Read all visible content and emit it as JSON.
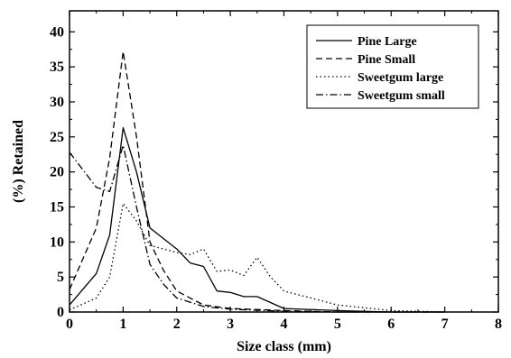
{
  "chart_data": {
    "type": "line",
    "title": "",
    "xlabel": "Size class (mm)",
    "ylabel": "(%) Retained",
    "xlim": [
      0,
      8
    ],
    "ylim": [
      0,
      43
    ],
    "xticks": [
      0,
      1,
      2,
      3,
      4,
      5,
      6,
      7,
      8
    ],
    "yticks": [
      0,
      5,
      10,
      15,
      20,
      25,
      30,
      35,
      40
    ],
    "grid": false,
    "legend_position": "top-right",
    "series": [
      {
        "name": "Pine Large",
        "dash": "solid",
        "color": "#000000",
        "points": [
          [
            0,
            1
          ],
          [
            0.5,
            5.5
          ],
          [
            0.75,
            11
          ],
          [
            1,
            26.3
          ],
          [
            1.25,
            20
          ],
          [
            1.5,
            12
          ],
          [
            2,
            9
          ],
          [
            2.25,
            7
          ],
          [
            2.5,
            6.5
          ],
          [
            2.75,
            3
          ],
          [
            3,
            2.8
          ],
          [
            3.25,
            2.2
          ],
          [
            3.5,
            2.2
          ],
          [
            4,
            0.5
          ],
          [
            5,
            0.2
          ],
          [
            6,
            0
          ],
          [
            7,
            0
          ]
        ]
      },
      {
        "name": "Pine Small",
        "dash": "dashed",
        "color": "#000000",
        "points": [
          [
            0,
            3.2
          ],
          [
            0.5,
            12
          ],
          [
            0.75,
            22
          ],
          [
            1,
            37.2
          ],
          [
            1.25,
            25
          ],
          [
            1.5,
            10
          ],
          [
            1.75,
            6
          ],
          [
            2,
            3
          ],
          [
            2.5,
            1
          ],
          [
            3,
            0.5
          ],
          [
            4,
            0.2
          ],
          [
            5,
            0
          ],
          [
            6,
            0
          ],
          [
            7,
            0
          ]
        ]
      },
      {
        "name": "Sweetgum large",
        "dash": "dotted",
        "color": "#000000",
        "points": [
          [
            0,
            0.3
          ],
          [
            0.5,
            2
          ],
          [
            0.75,
            5
          ],
          [
            1,
            15.5
          ],
          [
            1.25,
            13
          ],
          [
            1.5,
            9.5
          ],
          [
            2,
            8.5
          ],
          [
            2.25,
            8.2
          ],
          [
            2.5,
            9
          ],
          [
            2.75,
            5.8
          ],
          [
            3,
            6
          ],
          [
            3.25,
            5.2
          ],
          [
            3.5,
            7.8
          ],
          [
            3.75,
            5
          ],
          [
            4,
            3
          ],
          [
            5,
            1
          ],
          [
            6,
            0.2
          ],
          [
            7,
            0
          ]
        ]
      },
      {
        "name": "Sweetgum small",
        "dash": "dashdot",
        "color": "#000000",
        "points": [
          [
            0,
            22.8
          ],
          [
            0.5,
            17.8
          ],
          [
            0.75,
            17.2
          ],
          [
            1,
            23.8
          ],
          [
            1.25,
            15
          ],
          [
            1.5,
            6.8
          ],
          [
            1.75,
            4
          ],
          [
            2,
            2
          ],
          [
            2.5,
            0.8
          ],
          [
            3,
            0.4
          ],
          [
            4,
            0.1
          ],
          [
            5,
            0
          ],
          [
            6,
            0
          ],
          [
            7,
            0
          ]
        ]
      }
    ]
  }
}
